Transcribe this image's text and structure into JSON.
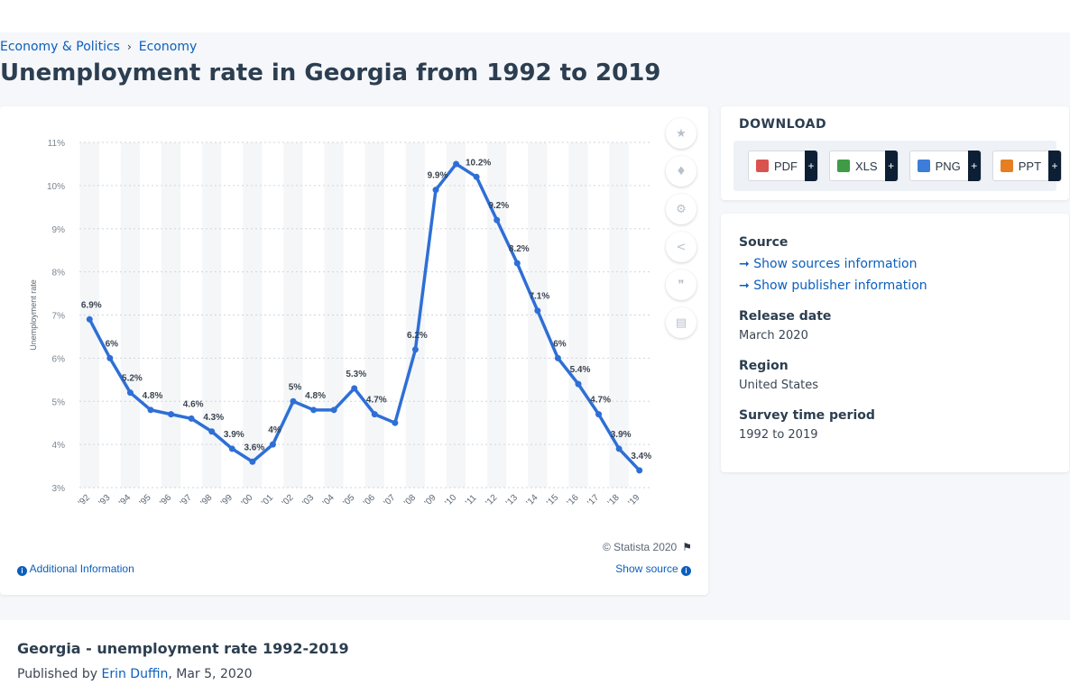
{
  "breadcrumb": {
    "item1": "Economy & Politics",
    "item2": "Economy"
  },
  "title": "Unemployment rate in Georgia from 1992 to 2019",
  "chart_data": {
    "type": "line",
    "categories": [
      "'92",
      "'93",
      "'94",
      "'95",
      "'96",
      "'97",
      "'98",
      "'99",
      "'00",
      "'01",
      "'02",
      "'03",
      "'04",
      "'05",
      "'06",
      "'07",
      "'08",
      "'09",
      "'10",
      "'11",
      "'12",
      "'13",
      "'14",
      "'15",
      "'16",
      "'17",
      "'18",
      "'19"
    ],
    "values": [
      6.9,
      6.0,
      5.2,
      4.8,
      4.7,
      4.6,
      4.3,
      3.9,
      3.6,
      4.0,
      5.0,
      4.8,
      4.8,
      5.3,
      4.7,
      4.5,
      6.2,
      9.9,
      10.5,
      10.2,
      9.2,
      8.2,
      7.1,
      6.0,
      5.4,
      4.7,
      3.9,
      3.4
    ],
    "data_labels": [
      "6.9%",
      "6%",
      "5.2%",
      "4.8%",
      "",
      "4.6%",
      "4.3%",
      "3.9%",
      "3.6%",
      "4%",
      "5%",
      "4.8%",
      "",
      "5.3%",
      "4.7%",
      "",
      "6.2%",
      "9.9%",
      "",
      "10.2%",
      "9.2%",
      "8.2%",
      "7.1%",
      "6%",
      "5.4%",
      "4.7%",
      "3.9%",
      "3.4%"
    ],
    "ylabel": "Unemployment rate",
    "ylim": [
      3,
      11
    ],
    "yticks": [
      "3%",
      "4%",
      "5%",
      "6%",
      "7%",
      "8%",
      "9%",
      "10%",
      "11%"
    ],
    "grid": true,
    "line_color": "#2e6fd6"
  },
  "chart_footer": {
    "credit": "© Statista 2020",
    "additional_info": "Additional Information",
    "show_source": "Show source"
  },
  "download": {
    "title": "DOWNLOAD",
    "buttons": [
      {
        "label": "PDF",
        "color": "#d9534f"
      },
      {
        "label": "XLS",
        "color": "#3f9b46"
      },
      {
        "label": "PNG",
        "color": "#3b7dd8"
      },
      {
        "label": "PPT",
        "color": "#e67e22"
      }
    ],
    "plus": "+"
  },
  "info": {
    "source_label": "Source",
    "show_sources": "Show sources information",
    "show_publisher": "Show publisher information",
    "release_label": "Release date",
    "release_value": "March 2020",
    "region_label": "Region",
    "region_value": "United States",
    "survey_label": "Survey time period",
    "survey_value": "1992 to 2019"
  },
  "description": {
    "title": "Georgia - unemployment rate 1992-2019",
    "published_prefix": "Published by",
    "author": "Erin Duffin",
    "date": ", Mar 5, 2020"
  },
  "tools": [
    "star-icon",
    "bell-icon",
    "gear-icon",
    "share-icon",
    "quote-icon",
    "print-icon"
  ]
}
